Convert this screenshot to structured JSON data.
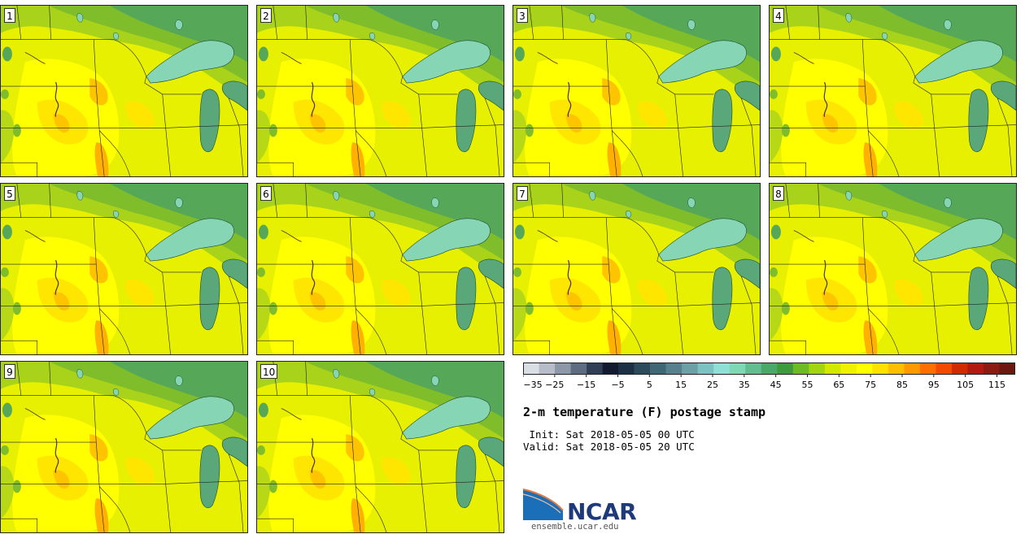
{
  "stamps": [
    {
      "label": "1"
    },
    {
      "label": "2"
    },
    {
      "label": "3"
    },
    {
      "label": "4"
    },
    {
      "label": "5"
    },
    {
      "label": "6"
    },
    {
      "label": "7"
    },
    {
      "label": "8"
    },
    {
      "label": "9"
    },
    {
      "label": "10"
    }
  ],
  "colorbar": {
    "colors": [
      "#d9dee5",
      "#b6bdc8",
      "#8c97a8",
      "#5e6c82",
      "#2f3d55",
      "#111a2e",
      "#1b2f45",
      "#2b4b5c",
      "#3f6675",
      "#56808c",
      "#6aa0a6",
      "#7dc2c2",
      "#8fdfd6",
      "#7ed8b4",
      "#62be90",
      "#4aa868",
      "#3e9a3c",
      "#6dbb24",
      "#a2d410",
      "#d2e800",
      "#eef200",
      "#ffff00",
      "#ffe000",
      "#ffbf00",
      "#ff9900",
      "#ff6f00",
      "#f24a00",
      "#d02a00",
      "#b01a10",
      "#8a1a12",
      "#6a1810"
    ],
    "tick_labels": [
      "−35",
      "−25",
      "−15",
      "−5",
      "5",
      "15",
      "25",
      "35",
      "45",
      "55",
      "65",
      "75",
      "85",
      "95",
      "105",
      "115"
    ]
  },
  "title": "2-m temperature (F) postage stamp",
  "init": " Init: Sat 2018-05-05 00 UTC",
  "valid": "Valid: Sat 2018-05-05 20 UTC",
  "logo": {
    "name": "NCAR",
    "url": "ensemble.ucar.edu"
  }
}
